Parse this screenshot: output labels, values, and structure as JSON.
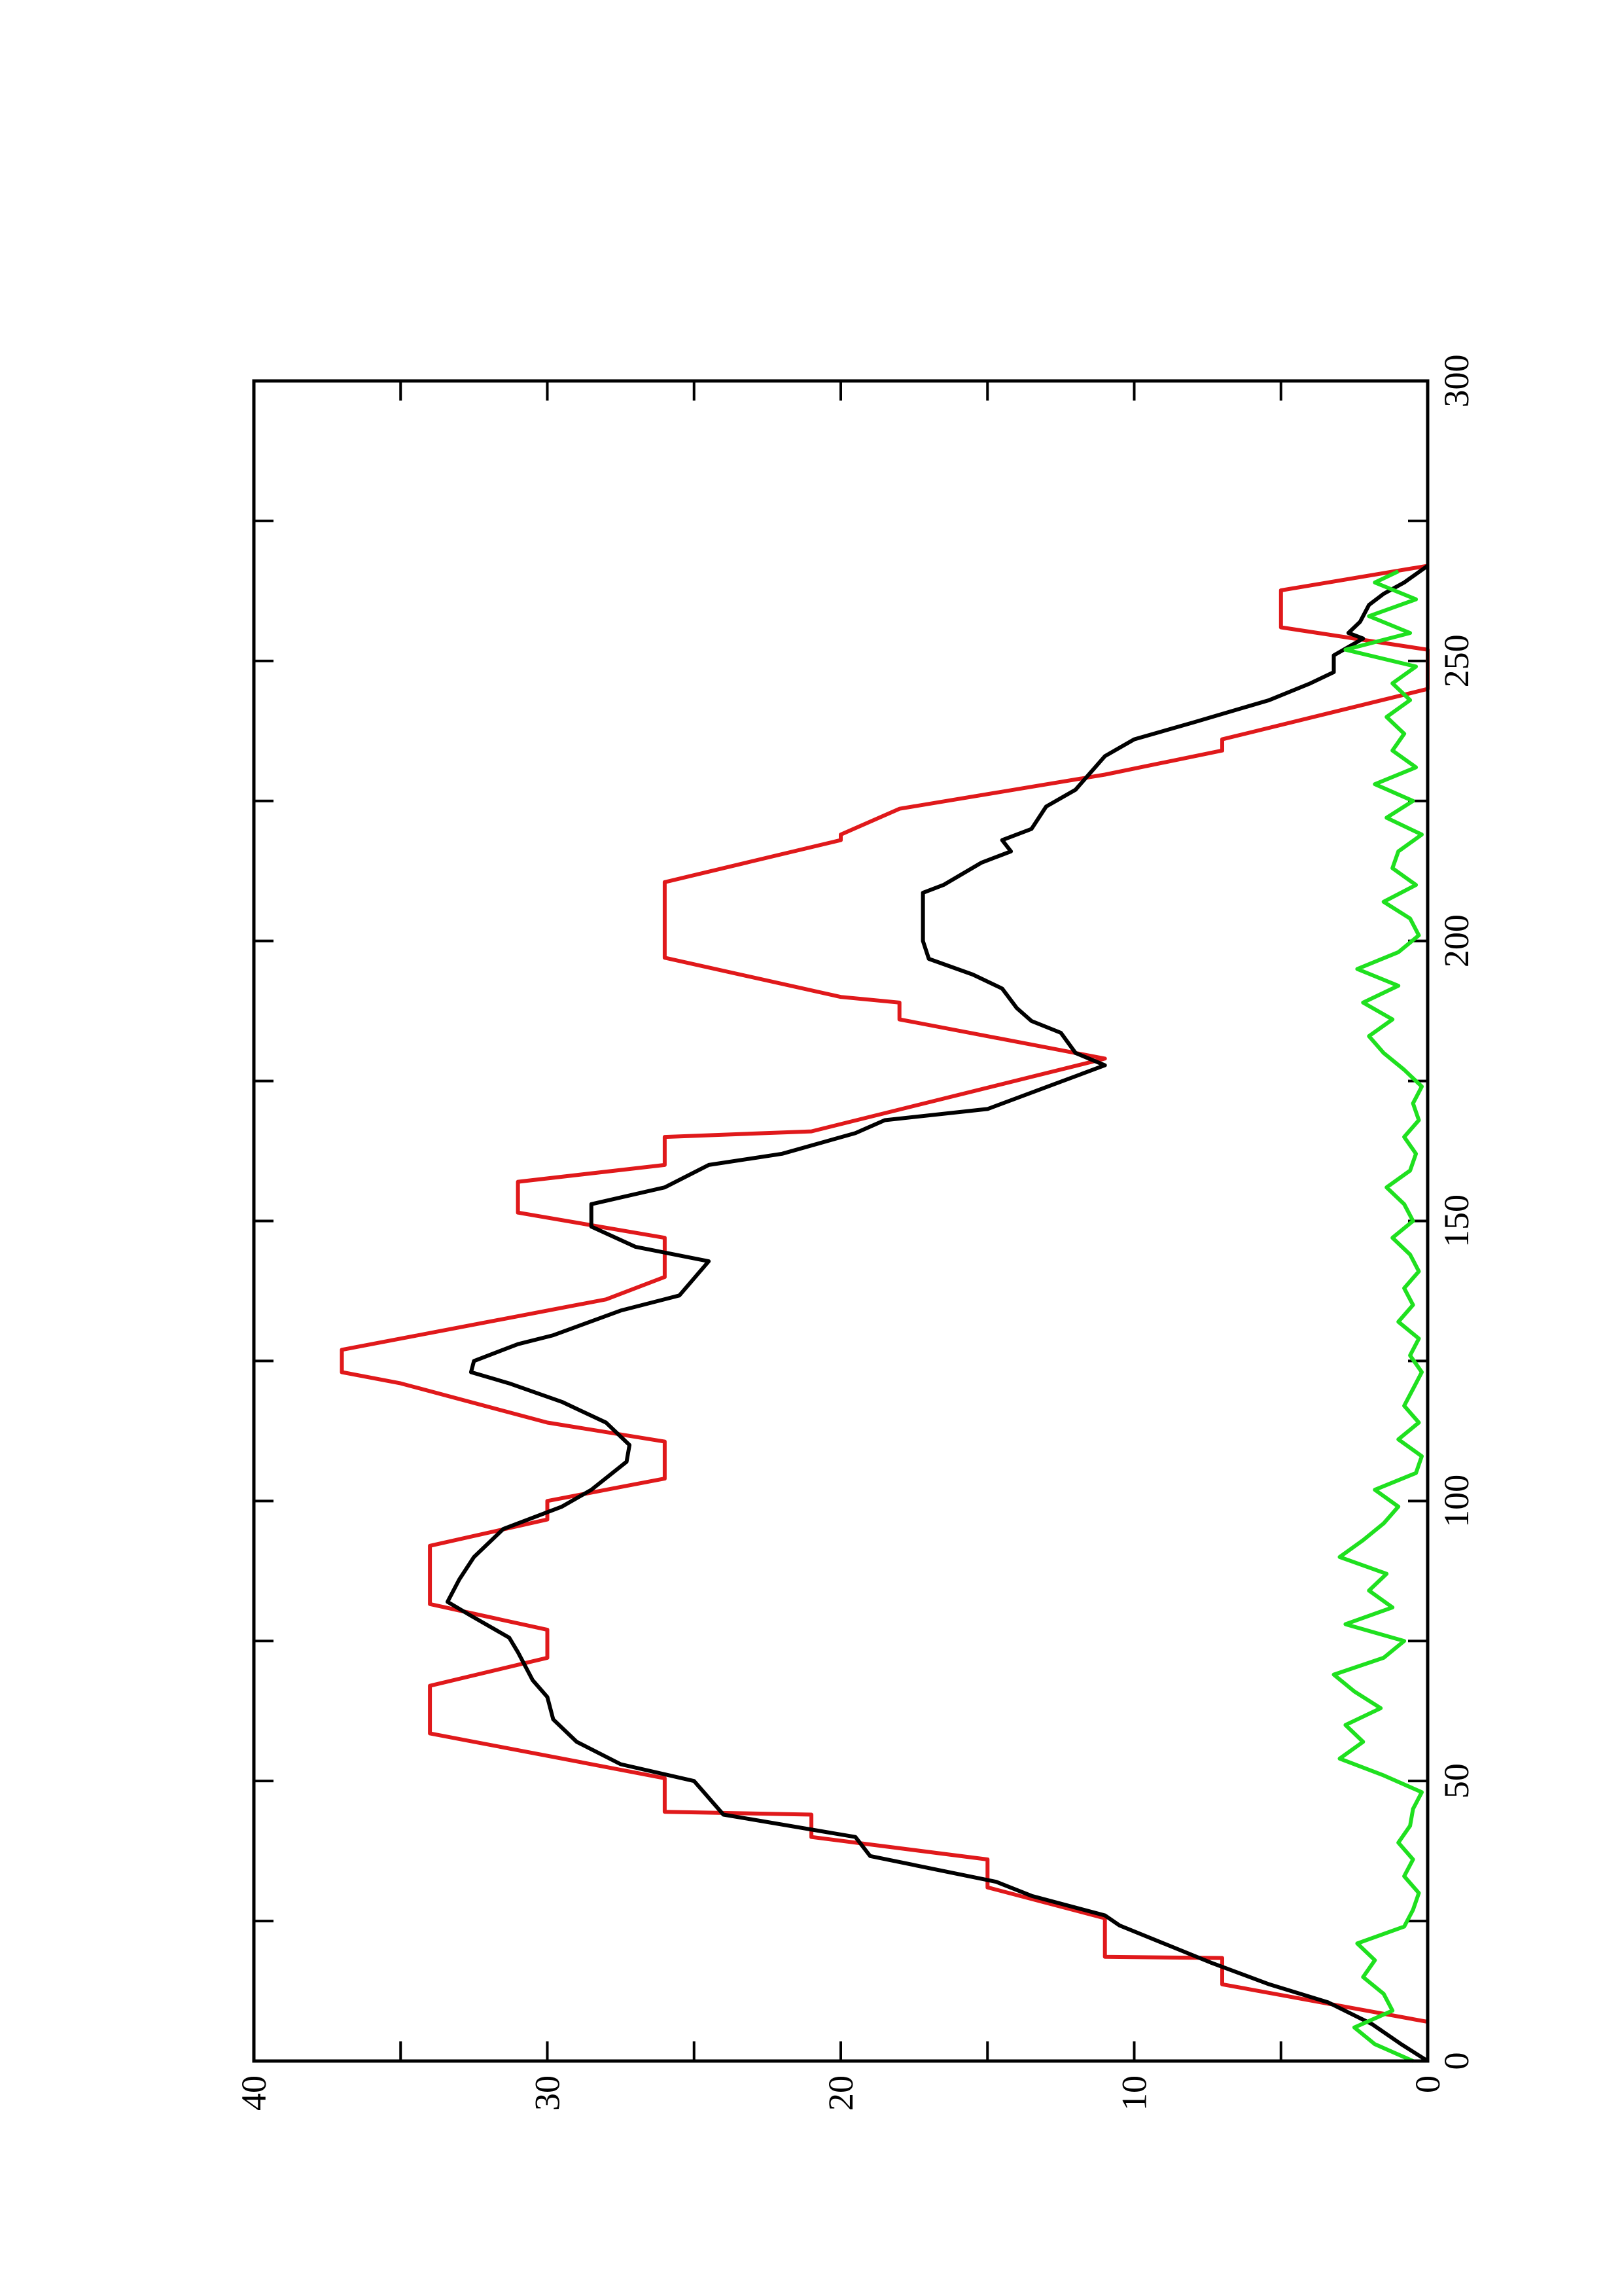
{
  "chart_data": {
    "type": "line",
    "xlim": [
      0,
      300
    ],
    "xticks": [
      0,
      50,
      100,
      150,
      200,
      250,
      300
    ],
    "xminorticks": [
      25,
      75,
      125,
      175,
      225,
      275
    ],
    "ylim": [
      0,
      40
    ],
    "yticks": [
      0,
      10,
      20,
      30,
      40
    ],
    "yminorticks": [
      5,
      15,
      25,
      35
    ],
    "rotated": true,
    "series": [
      {
        "color": "#e0191b",
        "x": [
          7,
          13.7,
          18.4,
          18.6,
          25.5,
          31,
          36,
          40,
          44,
          44.5,
          50.5,
          58.5,
          67,
          72,
          77,
          81.6,
          92,
          96.7,
          100,
          104,
          110.6,
          114,
          121,
          123,
          127,
          129,
          136,
          140,
          147,
          151.5,
          157,
          160,
          165,
          166,
          179,
          186,
          189,
          190,
          197,
          210.5,
          218,
          219,
          223.6,
          229.7,
          234,
          236,
          245,
          252,
          256,
          262.6,
          267
        ],
        "values": [
          0,
          7,
          7,
          11,
          11,
          15,
          15,
          21,
          21,
          26,
          26,
          34,
          34,
          30,
          30,
          34,
          34,
          30,
          30,
          26,
          26,
          30,
          35,
          37,
          37,
          35,
          28,
          26,
          26,
          31,
          31,
          26,
          26,
          21,
          11,
          18,
          18,
          20,
          26,
          26,
          20,
          20,
          18,
          11,
          7,
          7,
          0,
          0,
          5,
          5,
          0
        ]
      },
      {
        "color": "#000000",
        "x": [
          0,
          3,
          6.6,
          10.5,
          13.7,
          17.6,
          20.8,
          24.2,
          26,
          29.5,
          32,
          36.6,
          40,
          44,
          50,
          53,
          57,
          61,
          65,
          68,
          73,
          75.6,
          79.5,
          82,
          86,
          90,
          95,
          99,
          102,
          107,
          110,
          114,
          117.7,
          121,
          123,
          125,
          128,
          129.6,
          134,
          136.7,
          142.8,
          145.4,
          149,
          153,
          156,
          160,
          162,
          165.7,
          168,
          170,
          177.8,
          180,
          183.6,
          185.7,
          188,
          191.5,
          194,
          196.8,
          200,
          205,
          208.6,
          210,
          214,
          216,
          218,
          220,
          224,
          227,
          230,
          233,
          236,
          239,
          243,
          246,
          248,
          251,
          254,
          255,
          257,
          260,
          262,
          264,
          267
        ],
        "values": [
          0,
          0.9,
          1.9,
          3.4,
          5.4,
          7.4,
          8.9,
          10.5,
          11,
          13.5,
          14.7,
          19,
          19.5,
          24,
          25,
          27.5,
          29,
          29.8,
          30,
          30.5,
          31,
          31.3,
          32.6,
          33.4,
          33,
          32.5,
          31.5,
          29.5,
          28.5,
          27.3,
          27.2,
          28,
          29.5,
          31.3,
          32.6,
          32.5,
          31,
          29.8,
          27.5,
          25.5,
          24.5,
          27,
          28.5,
          28.5,
          26,
          24.5,
          22,
          19.5,
          18.5,
          15,
          11,
          12,
          12.5,
          13.5,
          14,
          14.5,
          15.5,
          17,
          17.2,
          17.2,
          17.2,
          16.5,
          15.2,
          14.2,
          14.5,
          13.5,
          13,
          12,
          11.5,
          11,
          10,
          8,
          5.4,
          4,
          3.2,
          3.2,
          2.2,
          2.7,
          2.3,
          2,
          1.5,
          0.8,
          0
        ]
      },
      {
        "color": "#1fe01f",
        "x": [
          0,
          3,
          6,
          9,
          12,
          15,
          18,
          21,
          24,
          27,
          30,
          33,
          36,
          39,
          42,
          45,
          48,
          51,
          54,
          57,
          60,
          63,
          66,
          69,
          72,
          75,
          78,
          81,
          84,
          87,
          90,
          93,
          96,
          99,
          102,
          105,
          108,
          111,
          114,
          117,
          120,
          123,
          126,
          129,
          132,
          135,
          138,
          141,
          144,
          147,
          150,
          153,
          156,
          159,
          162,
          165,
          168,
          171,
          174,
          177,
          180,
          183,
          186,
          189,
          192,
          195,
          198,
          201,
          204,
          207,
          210,
          213,
          216,
          219,
          222,
          225,
          228,
          231,
          234,
          237,
          240,
          243,
          246,
          249,
          252,
          255,
          258,
          261,
          264,
          266
        ],
        "values": [
          0.5,
          1.8,
          2.5,
          1.2,
          1.5,
          2.2,
          1.8,
          2.4,
          0.8,
          0.5,
          0.3,
          0.8,
          0.5,
          1.0,
          0.6,
          0.5,
          0.2,
          1.5,
          3.0,
          2.2,
          2.8,
          1.6,
          2.5,
          3.2,
          1.5,
          0.8,
          2.8,
          1.2,
          2.0,
          1.4,
          3.0,
          2.2,
          1.5,
          1.0,
          1.8,
          0.4,
          0.2,
          1.0,
          0.3,
          0.8,
          0.5,
          0.2,
          0.6,
          0.3,
          1.0,
          0.5,
          0.8,
          0.3,
          0.6,
          1.2,
          0.5,
          0.8,
          1.4,
          0.6,
          0.4,
          0.8,
          0.3,
          0.5,
          0.2,
          0.8,
          1.5,
          2.0,
          1.2,
          2.2,
          1.0,
          2.4,
          1.0,
          0.3,
          0.6,
          1.5,
          0.4,
          1.2,
          1.0,
          0.2,
          1.4,
          0.5,
          1.8,
          0.4,
          1.2,
          0.8,
          1.4,
          0.6,
          1.2,
          0.4,
          2.8,
          0.6,
          2.0,
          0.4,
          1.8,
          1.0
        ]
      }
    ]
  }
}
